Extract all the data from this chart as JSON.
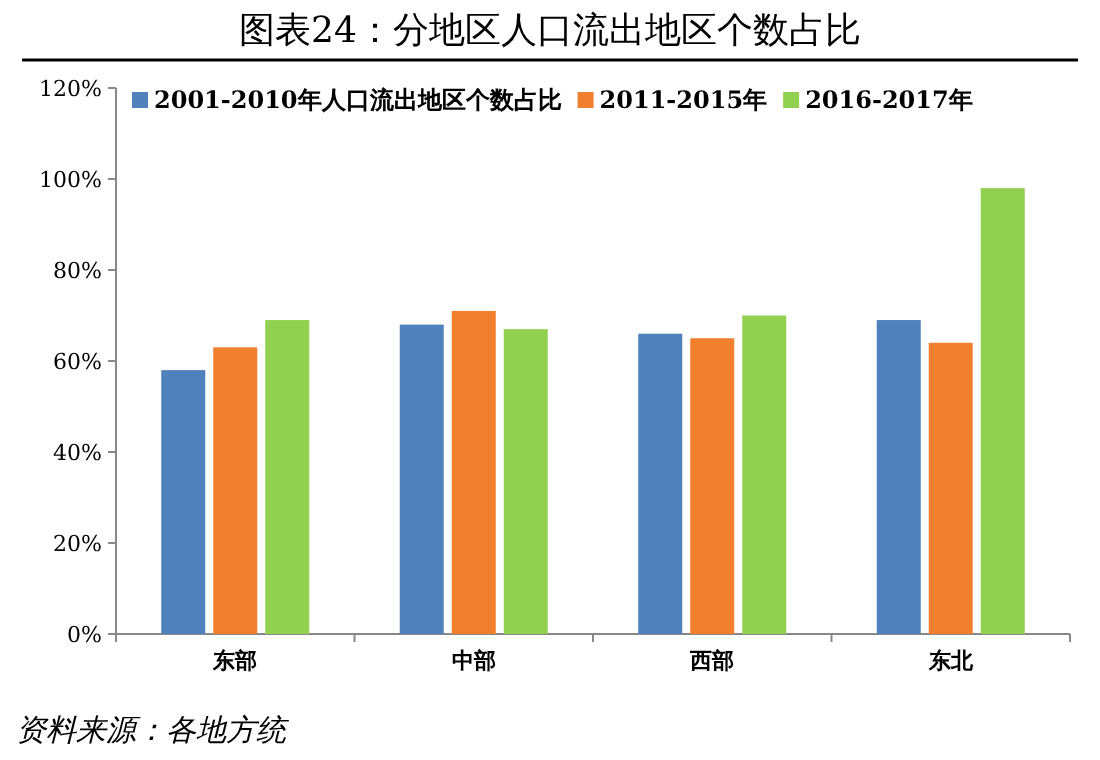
{
  "chart_data": {
    "type": "bar",
    "title": "图表24：分地区人口流出地区个数占比",
    "categories": [
      "东部",
      "中部",
      "西部",
      "东北"
    ],
    "series": [
      {
        "name": "2001-2010年人口流出地区个数占比",
        "color": "#4f81bd",
        "values": [
          58,
          68,
          66,
          69
        ]
      },
      {
        "name": "2011-2015年",
        "color": "#f07f2e",
        "values": [
          63,
          71,
          65,
          64
        ]
      },
      {
        "name": "2016-2017年",
        "color": "#92d050",
        "values": [
          69,
          67,
          70,
          98
        ]
      }
    ],
    "ylim": [
      0,
      120
    ],
    "yticks": [
      {
        "value": 0,
        "label": "0%"
      },
      {
        "value": 20,
        "label": "20%"
      },
      {
        "value": 40,
        "label": "40%"
      },
      {
        "value": 60,
        "label": "60%"
      },
      {
        "value": 80,
        "label": "80%"
      },
      {
        "value": 100,
        "label": "100%"
      },
      {
        "value": 120,
        "label": "120%"
      }
    ],
    "legend": "top",
    "annotations": [
      "资料来源：各地方统"
    ]
  }
}
